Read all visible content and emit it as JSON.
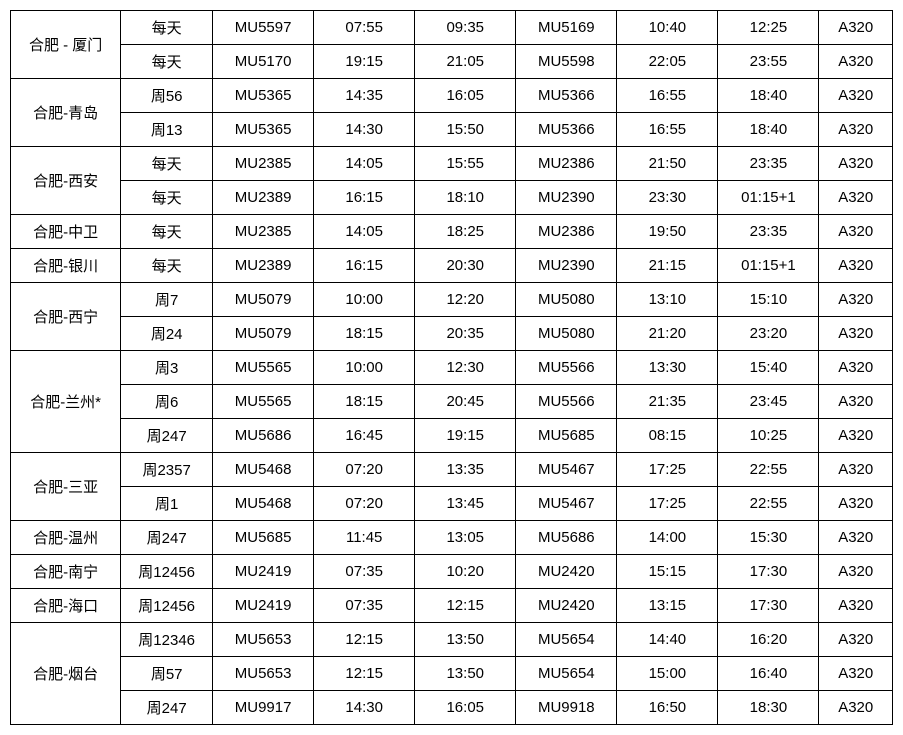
{
  "schedule": {
    "type": "table",
    "rows": [
      {
        "route": "合肥 - 厦门",
        "rowspan": 2,
        "freq": "每天",
        "flight1": "MU5597",
        "dep1": "07:55",
        "arr1": "09:35",
        "flight2": "MU5169",
        "dep2": "10:40",
        "arr2": "12:25",
        "aircraft": "A320"
      },
      {
        "route": null,
        "freq": "每天",
        "flight1": "MU5170",
        "dep1": "19:15",
        "arr1": "21:05",
        "flight2": "MU5598",
        "dep2": "22:05",
        "arr2": "23:55",
        "aircraft": "A320"
      },
      {
        "route": "合肥-青岛",
        "rowspan": 2,
        "freq": "周56",
        "flight1": "MU5365",
        "dep1": "14:35",
        "arr1": "16:05",
        "flight2": "MU5366",
        "dep2": "16:55",
        "arr2": "18:40",
        "aircraft": "A320"
      },
      {
        "route": null,
        "freq": "周13",
        "flight1": "MU5365",
        "dep1": "14:30",
        "arr1": "15:50",
        "flight2": "MU5366",
        "dep2": "16:55",
        "arr2": "18:40",
        "aircraft": "A320"
      },
      {
        "route": "合肥-西安",
        "rowspan": 2,
        "freq": "每天",
        "flight1": "MU2385",
        "dep1": "14:05",
        "arr1": "15:55",
        "flight2": "MU2386",
        "dep2": "21:50",
        "arr2": "23:35",
        "aircraft": "A320"
      },
      {
        "route": null,
        "freq": "每天",
        "flight1": "MU2389",
        "dep1": "16:15",
        "arr1": "18:10",
        "flight2": "MU2390",
        "dep2": "23:30",
        "arr2": "01:15+1",
        "aircraft": "A320"
      },
      {
        "route": "合肥-中卫",
        "rowspan": 1,
        "freq": "每天",
        "flight1": "MU2385",
        "dep1": "14:05",
        "arr1": "18:25",
        "flight2": "MU2386",
        "dep2": "19:50",
        "arr2": "23:35",
        "aircraft": "A320"
      },
      {
        "route": "合肥-银川",
        "rowspan": 1,
        "freq": "每天",
        "flight1": "MU2389",
        "dep1": "16:15",
        "arr1": "20:30",
        "flight2": "MU2390",
        "dep2": "21:15",
        "arr2": "01:15+1",
        "aircraft": "A320"
      },
      {
        "route": "合肥-西宁",
        "rowspan": 2,
        "freq": "周7",
        "flight1": "MU5079",
        "dep1": "10:00",
        "arr1": "12:20",
        "flight2": "MU5080",
        "dep2": "13:10",
        "arr2": "15:10",
        "aircraft": "A320"
      },
      {
        "route": null,
        "freq": "周24",
        "flight1": "MU5079",
        "dep1": "18:15",
        "arr1": "20:35",
        "flight2": "MU5080",
        "dep2": "21:20",
        "arr2": "23:20",
        "aircraft": "A320"
      },
      {
        "route": "合肥-兰州*",
        "rowspan": 3,
        "freq": "周3",
        "flight1": "MU5565",
        "dep1": "10:00",
        "arr1": "12:30",
        "flight2": "MU5566",
        "dep2": "13:30",
        "arr2": "15:40",
        "aircraft": "A320"
      },
      {
        "route": null,
        "freq": "周6",
        "flight1": "MU5565",
        "dep1": "18:15",
        "arr1": "20:45",
        "flight2": "MU5566",
        "dep2": "21:35",
        "arr2": "23:45",
        "aircraft": "A320"
      },
      {
        "route": null,
        "freq": "周247",
        "flight1": "MU5686",
        "dep1": "16:45",
        "arr1": "19:15",
        "flight2": "MU5685",
        "dep2": "08:15",
        "arr2": "10:25",
        "aircraft": "A320"
      },
      {
        "route": "合肥-三亚",
        "rowspan": 2,
        "freq": "周2357",
        "flight1": "MU5468",
        "dep1": "07:20",
        "arr1": "13:35",
        "flight2": "MU5467",
        "dep2": "17:25",
        "arr2": "22:55",
        "aircraft": "A320"
      },
      {
        "route": null,
        "freq": "周1",
        "flight1": "MU5468",
        "dep1": "07:20",
        "arr1": "13:45",
        "flight2": "MU5467",
        "dep2": "17:25",
        "arr2": "22:55",
        "aircraft": "A320"
      },
      {
        "route": "合肥-温州",
        "rowspan": 1,
        "freq": "周247",
        "flight1": "MU5685",
        "dep1": "11:45",
        "arr1": "13:05",
        "flight2": "MU5686",
        "dep2": "14:00",
        "arr2": "15:30",
        "aircraft": "A320"
      },
      {
        "route": "合肥-南宁",
        "rowspan": 1,
        "freq": "周12456",
        "flight1": "MU2419",
        "dep1": "07:35",
        "arr1": "10:20",
        "flight2": "MU2420",
        "dep2": "15:15",
        "arr2": "17:30",
        "aircraft": "A320"
      },
      {
        "route": "合肥-海口",
        "rowspan": 1,
        "freq": "周12456",
        "flight1": "MU2419",
        "dep1": "07:35",
        "arr1": "12:15",
        "flight2": "MU2420",
        "dep2": "13:15",
        "arr2": "17:30",
        "aircraft": "A320"
      },
      {
        "route": "合肥-烟台",
        "rowspan": 3,
        "freq": "周12346",
        "flight1": "MU5653",
        "dep1": "12:15",
        "arr1": "13:50",
        "flight2": "MU5654",
        "dep2": "14:40",
        "arr2": "16:20",
        "aircraft": "A320"
      },
      {
        "route": null,
        "freq": "周57",
        "flight1": "MU5653",
        "dep1": "12:15",
        "arr1": "13:50",
        "flight2": "MU5654",
        "dep2": "15:00",
        "arr2": "16:40",
        "aircraft": "A320"
      },
      {
        "route": null,
        "freq": "周247",
        "flight1": "MU9917",
        "dep1": "14:30",
        "arr1": "16:05",
        "flight2": "MU9918",
        "dep2": "16:50",
        "arr2": "18:30",
        "aircraft": "A320"
      }
    ],
    "column_widths": [
      "12%",
      "10%",
      "11%",
      "11%",
      "11%",
      "11%",
      "11%",
      "11%",
      "8%"
    ],
    "border_color": "#000000",
    "background_color": "#ffffff",
    "text_color": "#000000",
    "font_size": 15
  }
}
